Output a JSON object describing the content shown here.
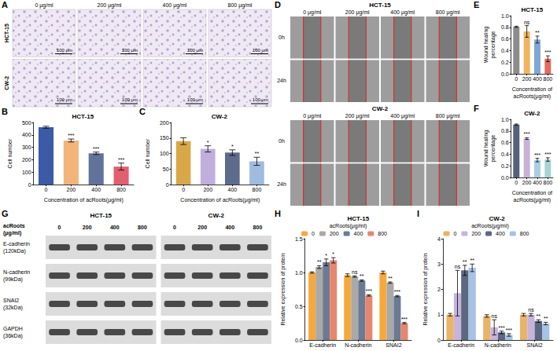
{
  "figures": [
    {
      "panel": "A",
      "type": "image_grid",
      "columns": [
        "0 μg/ml",
        "200 μg/ml",
        "400 μg/ml",
        "800 μg/ml"
      ],
      "rows": [
        "HCT-15",
        "CW-2"
      ],
      "scale_bar": "100 μm"
    },
    {
      "panel": "D",
      "type": "image_grid",
      "groups": [
        {
          "title": "HCT-15",
          "columns": [
            "0 μg/ml",
            "200 μg/ml",
            "400 μg/ml",
            "800 μg/ml"
          ],
          "rows": [
            "0h",
            "24h"
          ]
        },
        {
          "title": "CW-2",
          "columns": [
            "0 μg/ml",
            "200 μg/ml",
            "400 μg/ml",
            "800 μg/ml"
          ],
          "rows": [
            "0h",
            "24h"
          ]
        }
      ]
    },
    {
      "panel": "G",
      "type": "western_blot",
      "row_header": "acRoots (μg/ml)",
      "groups": [
        {
          "title": "HCT-15",
          "lanes": [
            "0",
            "200",
            "400",
            "800"
          ]
        },
        {
          "title": "CW-2",
          "lanes": [
            "0",
            "200",
            "400",
            "800"
          ]
        }
      ],
      "rows": [
        {
          "name": "E-cadherin",
          "size": "(120kDa)"
        },
        {
          "name": "N-cadherin",
          "size": "(99kDa)"
        },
        {
          "name": "SNAI2",
          "size": "(32kDa)"
        },
        {
          "name": "GAPDH",
          "size": "(36kDa)"
        }
      ]
    }
  ],
  "chart_data": [
    {
      "panel": "B",
      "type": "bar",
      "title": "HCT-15",
      "x_label": "Concentration of acRoots(μg/ml)",
      "y_label": "Cell number",
      "categories": [
        "0",
        "200",
        "400",
        "800"
      ],
      "values": [
        462,
        355,
        252,
        145
      ],
      "errors": [
        8,
        12,
        10,
        28
      ],
      "significance": [
        null,
        "***",
        "***",
        "***"
      ],
      "colors": [
        "#3c5aa6",
        "#f3b47a",
        "#62739b",
        "#e25f6f"
      ],
      "ylim": [
        0,
        500
      ],
      "yticks": [
        0,
        100,
        200,
        300,
        400,
        500
      ],
      "grid": false
    },
    {
      "panel": "C",
      "type": "bar",
      "title": "CW-2",
      "x_label": "Concentration of acRoots(μg/ml)",
      "y_label": "Cell number",
      "categories": [
        "0",
        "200",
        "400",
        "800"
      ],
      "values": [
        140,
        115,
        103,
        75
      ],
      "errors": [
        11,
        10,
        9,
        13
      ],
      "significance": [
        null,
        "*",
        "*",
        "**"
      ],
      "colors": [
        "#d8a848",
        "#c0aedc",
        "#5d6b8c",
        "#9fbbdd"
      ],
      "ylim": [
        0,
        200
      ],
      "yticks": [
        0,
        50,
        100,
        150,
        200
      ],
      "grid": false
    },
    {
      "panel": "E",
      "type": "bar",
      "title": "HCT-15",
      "x_label": "Concentration of acRoots(μg/ml)",
      "y_label": "Wound healing percentage",
      "categories": [
        "0",
        "200",
        "400",
        "800"
      ],
      "values": [
        0.81,
        0.73,
        0.59,
        0.26
      ],
      "errors": [
        0.01,
        0.1,
        0.06,
        0.05
      ],
      "significance": [
        null,
        "ns",
        "**",
        "***"
      ],
      "colors": [
        "#8c8c8c",
        "#f2b45e",
        "#7fa7d6",
        "#e26a5f"
      ],
      "ylim": [
        0,
        1
      ],
      "yticks": [
        {
          "value": 0,
          "label": "0.0"
        },
        0.2,
        0.4,
        0.6,
        0.8,
        {
          "value": 1,
          "label": "1.0"
        }
      ],
      "grid": false
    },
    {
      "panel": "F",
      "type": "bar",
      "title": "CW-2",
      "x_label": "Concentration of acRoots(μg/ml)",
      "y_label": "Wound healing percentage",
      "categories": [
        "0",
        "200",
        "400",
        "800"
      ],
      "values": [
        0.91,
        0.67,
        0.3,
        0.31
      ],
      "errors": [
        0.01,
        0.015,
        0.03,
        0.03
      ],
      "significance": [
        null,
        "***",
        "***",
        "***"
      ],
      "colors": [
        "#55607d",
        "#c8b2d8",
        "#a8cfe0",
        "#a6d4d2"
      ],
      "ylim": [
        0,
        1
      ],
      "yticks": [
        {
          "value": 0,
          "label": "0.0"
        },
        0.2,
        0.4,
        0.6,
        0.8,
        {
          "value": 1,
          "label": "1.0"
        }
      ],
      "grid": false
    },
    {
      "panel": "H",
      "type": "bar",
      "title": "HCT-15",
      "y_label": "Relative expression of protein",
      "categories": [
        "E-cadherin",
        "N-cadherin",
        "SNAI2"
      ],
      "legend": "top",
      "legend_title": "acRoots(μg/ml)",
      "series": [
        {
          "name": "0",
          "color": "#f5a93c",
          "values": [
            1.0,
            0.96,
            1.0
          ],
          "errors": [
            0.01,
            0.02,
            0.02
          ],
          "significance": [
            null,
            null,
            null
          ]
        },
        {
          "name": "200",
          "color": "#a9a9a9",
          "values": [
            1.08,
            0.94,
            0.85
          ],
          "errors": [
            0.02,
            0.01,
            0.01
          ],
          "significance": [
            "**",
            "ns",
            "**"
          ]
        },
        {
          "name": "400",
          "color": "#6c7a93",
          "values": [
            1.15,
            0.88,
            0.65
          ],
          "errors": [
            0.05,
            0.01,
            0.01
          ],
          "significance": [
            "*",
            "**",
            "***"
          ]
        },
        {
          "name": "800",
          "color": "#e5866f",
          "values": [
            1.18,
            0.66,
            0.25
          ],
          "errors": [
            0.04,
            0.01,
            0.01
          ],
          "significance": [
            "*",
            "***",
            "***"
          ]
        }
      ],
      "ylim": [
        0,
        1.5
      ],
      "yticks": [
        {
          "value": 0,
          "label": "0.0"
        },
        0.5,
        {
          "value": 1,
          "label": "1.0"
        },
        1.5
      ],
      "grid": false
    },
    {
      "panel": "I",
      "type": "bar",
      "title": "CW-2",
      "y_label": "Relative expression of protein",
      "categories": [
        "E-cadherin",
        "N-cadherin",
        "SNAI2"
      ],
      "legend": "top",
      "legend_title": "acRoots(μg/ml)",
      "series": [
        {
          "name": "0",
          "color": "#e8b46a",
          "values": [
            1.0,
            0.95,
            1.0
          ],
          "errors": [
            0.05,
            0.05,
            0.05
          ],
          "significance": [
            null,
            null,
            null
          ]
        },
        {
          "name": "200",
          "color": "#c7b4dc",
          "values": [
            1.85,
            0.5,
            1.0
          ],
          "errors": [
            0.9,
            0.3,
            0.05
          ],
          "significance": [
            "ns",
            "ns",
            "ns"
          ]
        },
        {
          "name": "400",
          "color": "#5c6880",
          "values": [
            2.75,
            0.3,
            0.75
          ],
          "errors": [
            0.2,
            0.05,
            0.05
          ],
          "significance": [
            "**",
            "***",
            "**"
          ]
        },
        {
          "name": "800",
          "color": "#a7c3e3",
          "values": [
            2.85,
            0.2,
            0.65
          ],
          "errors": [
            0.15,
            0.05,
            0.05
          ],
          "significance": [
            "**",
            "***",
            "**"
          ]
        }
      ],
      "ylim": [
        0,
        4
      ],
      "yticks": [
        0,
        1,
        2,
        3,
        4
      ],
      "grid": false
    }
  ]
}
